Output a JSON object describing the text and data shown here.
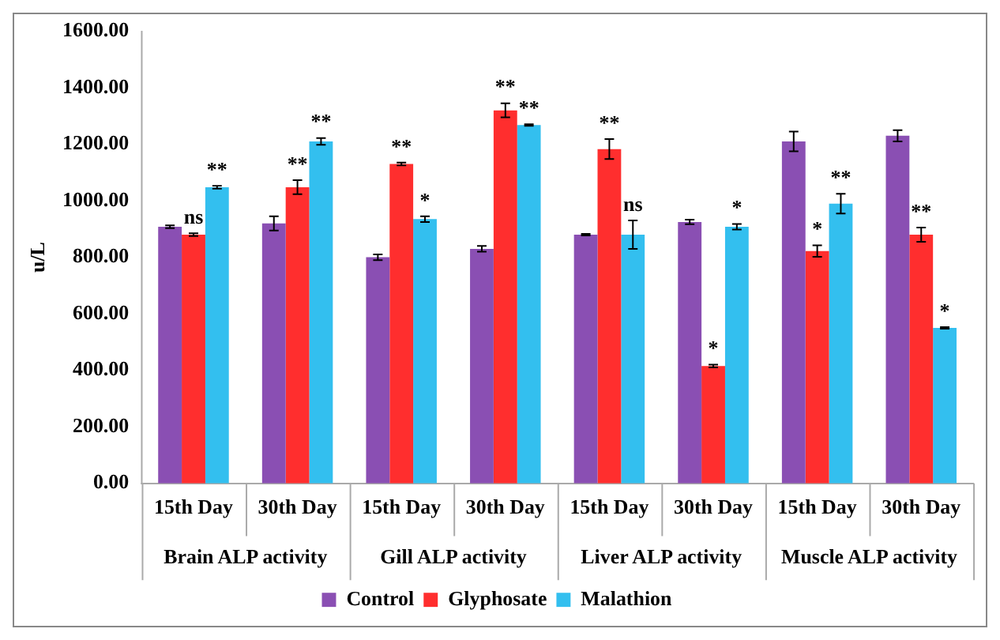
{
  "chart_data": {
    "type": "bar",
    "ylabel": "u/L",
    "categories": [
      "15th Day",
      "30th Day",
      "15th Day",
      "30th Day",
      "15th Day",
      "30th Day",
      "15th Day",
      "30th Day"
    ],
    "annotations": [
      "Brain ALP activity",
      "Gill ALP activity",
      "Liver ALP activity",
      "Muscle ALP activity"
    ],
    "series": [
      {
        "name": "Control",
        "color": "#8a4fb3",
        "values": [
          908,
          920,
          800,
          830,
          880,
          925,
          1210,
          1230
        ],
        "errors": [
          5,
          25,
          10,
          10,
          3,
          8,
          35,
          20
        ]
      },
      {
        "name": "Glyphosate",
        "color": "#ff2e2e",
        "values": [
          880,
          1048,
          1130,
          1320,
          1183,
          415,
          822,
          880
        ],
        "errors": [
          5,
          25,
          5,
          25,
          35,
          5,
          20,
          25
        ],
        "value_labels": [
          "ns",
          "**",
          "**",
          "**",
          "**",
          "*",
          "*",
          "**"
        ]
      },
      {
        "name": "Malathion",
        "color": "#33bfef",
        "values": [
          1048,
          1210,
          935,
          1268,
          880,
          908,
          990,
          550
        ],
        "errors": [
          5,
          12,
          10,
          3,
          50,
          10,
          35,
          3
        ],
        "value_labels": [
          "**",
          "**",
          "*",
          "**",
          "ns",
          "*",
          "**",
          "*"
        ]
      }
    ],
    "ylim": [
      0,
      1600
    ],
    "yticks": [
      {
        "value": 0,
        "label": "0.00"
      },
      {
        "value": 200,
        "label": "200.00"
      },
      {
        "value": 400,
        "label": "400.00"
      },
      {
        "value": 600,
        "label": "600.00"
      },
      {
        "value": 800,
        "label": "800.00"
      },
      {
        "value": 1000,
        "label": "1000.00"
      },
      {
        "value": 1200,
        "label": "1200.00"
      },
      {
        "value": 1400,
        "label": "1400.00"
      },
      {
        "value": 1600,
        "label": "1600.00"
      }
    ],
    "legend": "bottom"
  }
}
